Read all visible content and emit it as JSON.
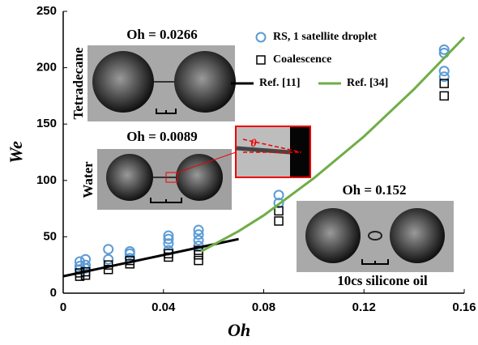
{
  "chart_data": {
    "type": "scatter",
    "x_label": "Oh",
    "y_label": "We",
    "xlim": [
      0,
      0.16
    ],
    "ylim": [
      0,
      250
    ],
    "xticks": [
      0,
      0.04,
      0.08,
      0.12,
      0.16
    ],
    "yticks": [
      0,
      50,
      100,
      150,
      200,
      250
    ],
    "series": [
      {
        "name": "RS, 1 satellite droplet",
        "marker": "circle",
        "color": "#5b9bd5",
        "x": [
          0.0066,
          0.0066,
          0.0066,
          0.0089,
          0.0089,
          0.0089,
          0.018,
          0.018,
          0.0266,
          0.0266,
          0.0266,
          0.042,
          0.042,
          0.042,
          0.042,
          0.054,
          0.054,
          0.054,
          0.054,
          0.086,
          0.086,
          0.152,
          0.152,
          0.152,
          0.152
        ],
        "values": [
          28,
          24,
          21,
          30,
          25,
          22,
          39,
          30,
          37,
          35,
          31,
          51,
          48,
          44,
          38,
          56,
          52,
          47,
          42,
          87,
          80,
          216,
          213,
          197,
          192
        ]
      },
      {
        "name": "Coalescence",
        "marker": "square",
        "color": "#000000",
        "x": [
          0.0066,
          0.0066,
          0.0089,
          0.0089,
          0.018,
          0.018,
          0.0266,
          0.0266,
          0.042,
          0.042,
          0.054,
          0.054,
          0.054,
          0.086,
          0.086,
          0.152,
          0.152
        ],
        "values": [
          18,
          15,
          19,
          16,
          25,
          21,
          29,
          26,
          35,
          32,
          38,
          34,
          29,
          73,
          64,
          186,
          175
        ]
      },
      {
        "name": "Ref. [11]",
        "marker": "line",
        "color": "#000000",
        "x": [
          0,
          0.07
        ],
        "values": [
          15,
          48
        ]
      },
      {
        "name": "Ref. [34]",
        "marker": "line",
        "color": "#70ad47",
        "x": [
          0.055,
          0.07,
          0.08,
          0.1,
          0.12,
          0.14,
          0.16
        ],
        "values": [
          37,
          55,
          69,
          102,
          139,
          181,
          227
        ]
      }
    ],
    "annotations": [
      "Oh = 0.0266",
      "Tetradecane",
      "Oh = 0.0089",
      "Water",
      "Oh = 0.152",
      "10cs silicone oil",
      "θ"
    ]
  }
}
